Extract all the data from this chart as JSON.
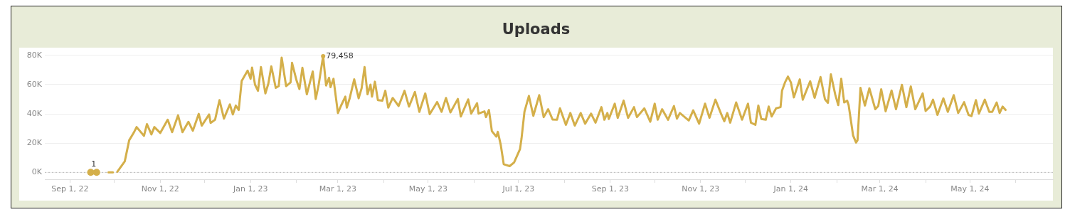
{
  "chart_data": {
    "type": "line",
    "title": "Uploads",
    "x": [
      "2022-09-15",
      "2022-09-17",
      "2022-09-19",
      "2022-09-23",
      "2022-09-27",
      "2022-09-30",
      "2022-10-01",
      "2022-10-03",
      "2022-10-08",
      "2022-10-11",
      "2022-10-14",
      "2022-10-16",
      "2022-10-21",
      "2022-10-23",
      "2022-10-26",
      "2022-10-28",
      "2022-11-01",
      "2022-11-06",
      "2022-11-09",
      "2022-11-13",
      "2022-11-16",
      "2022-11-20",
      "2022-11-23",
      "2022-11-27",
      "2022-11-29",
      "2022-12-04",
      "2022-12-05",
      "2022-12-08",
      "2022-12-11",
      "2022-12-14",
      "2022-12-18",
      "2022-12-20",
      "2022-12-22",
      "2022-12-24",
      "2022-12-26",
      "2022-12-30",
      "2023-01-01",
      "2023-01-02",
      "2023-01-04",
      "2023-01-06",
      "2023-01-08",
      "2023-01-11",
      "2023-01-13",
      "2023-01-15",
      "2023-01-18",
      "2023-01-20",
      "2023-01-22",
      "2023-01-25",
      "2023-01-28",
      "2023-01-29",
      "2023-02-01",
      "2023-02-03",
      "2023-02-05",
      "2023-02-08",
      "2023-02-12",
      "2023-02-14",
      "2023-02-16",
      "2023-02-19",
      "2023-02-21",
      "2023-02-23",
      "2023-02-24",
      "2023-02-26",
      "2023-03-01",
      "2023-03-03",
      "2023-03-06",
      "2023-03-07",
      "2023-03-09",
      "2023-03-12",
      "2023-03-15",
      "2023-03-17",
      "2023-03-19",
      "2023-03-21",
      "2023-03-23",
      "2023-03-24",
      "2023-03-26",
      "2023-03-28",
      "2023-03-31",
      "2023-04-02",
      "2023-04-04",
      "2023-04-07",
      "2023-04-11",
      "2023-04-15",
      "2023-04-18",
      "2023-04-22",
      "2023-04-25",
      "2023-04-29",
      "2023-05-02",
      "2023-05-07",
      "2023-05-10",
      "2023-05-13",
      "2023-05-16",
      "2023-05-21",
      "2023-05-23",
      "2023-05-28",
      "2023-05-30",
      "2023-06-03",
      "2023-06-04",
      "2023-06-08",
      "2023-06-09",
      "2023-06-11",
      "2023-06-13",
      "2023-06-16",
      "2023-06-17",
      "2023-06-19",
      "2023-06-21",
      "2023-06-25",
      "2023-06-28",
      "2023-07-02",
      "2023-07-03",
      "2023-07-05",
      "2023-07-08",
      "2023-07-11",
      "2023-07-15",
      "2023-07-18",
      "2023-07-21",
      "2023-07-24",
      "2023-07-27",
      "2023-07-29",
      "2023-08-02",
      "2023-08-05",
      "2023-08-08",
      "2023-08-12",
      "2023-08-15",
      "2023-08-19",
      "2023-08-22",
      "2023-08-26",
      "2023-08-28",
      "2023-08-30",
      "2023-08-31",
      "2023-09-04",
      "2023-09-06",
      "2023-09-10",
      "2023-09-13",
      "2023-09-17",
      "2023-09-19",
      "2023-09-24",
      "2023-09-28",
      "2023-10-01",
      "2023-10-03",
      "2023-10-06",
      "2023-10-10",
      "2023-10-14",
      "2023-10-16",
      "2023-10-18",
      "2023-10-24",
      "2023-10-27",
      "2023-10-31",
      "2023-11-04",
      "2023-11-07",
      "2023-11-11",
      "2023-11-15",
      "2023-11-17",
      "2023-11-19",
      "2023-11-21",
      "2023-11-25",
      "2023-11-29",
      "2023-12-03",
      "2023-12-05",
      "2023-12-08",
      "2023-12-10",
      "2023-12-12",
      "2023-12-15",
      "2023-12-17",
      "2023-12-19",
      "2023-12-22",
      "2023-12-25",
      "2023-12-26",
      "2023-12-28",
      "2023-12-30",
      "2024-01-01",
      "2024-01-03",
      "2024-01-07",
      "2024-01-09",
      "2024-01-14",
      "2024-01-17",
      "2024-01-21",
      "2024-01-24",
      "2024-01-26",
      "2024-01-28",
      "2024-01-31",
      "2024-02-02",
      "2024-02-04",
      "2024-02-06",
      "2024-02-08",
      "2024-02-09",
      "2024-02-12",
      "2024-02-14",
      "2024-02-15",
      "2024-02-17",
      "2024-02-20",
      "2024-02-23",
      "2024-02-27",
      "2024-02-29",
      "2024-03-02",
      "2024-03-05",
      "2024-03-09",
      "2024-03-12",
      "2024-03-16",
      "2024-03-19",
      "2024-03-22",
      "2024-03-25",
      "2024-03-30",
      "2024-04-01",
      "2024-04-04",
      "2024-04-06",
      "2024-04-09",
      "2024-04-13",
      "2024-04-16",
      "2024-04-20",
      "2024-04-23",
      "2024-04-27",
      "2024-04-30",
      "2024-05-02",
      "2024-05-05",
      "2024-05-07",
      "2024-05-11",
      "2024-05-14",
      "2024-05-16",
      "2024-05-19",
      "2024-05-21",
      "2024-05-23",
      "2024-05-25"
    ],
    "series": [
      {
        "color": "#d4af4a",
        "values": [
          1,
          null,
          1,
          null,
          10,
          10,
          null,
          500,
          7500,
          22000,
          27000,
          31000,
          25000,
          33000,
          26000,
          31000,
          27000,
          36000,
          27500,
          39000,
          27500,
          34600,
          28500,
          40000,
          32000,
          39600,
          33800,
          36000,
          49400,
          36800,
          46500,
          39600,
          45700,
          42700,
          62600,
          69600,
          64000,
          71700,
          60000,
          55800,
          72000,
          54000,
          60700,
          72500,
          57800,
          59000,
          78500,
          59000,
          61500,
          74900,
          63000,
          57000,
          71500,
          53400,
          69000,
          50200,
          60000,
          79458,
          59400,
          64700,
          58300,
          64000,
          40600,
          45400,
          51800,
          44300,
          50900,
          63600,
          50700,
          57500,
          72000,
          53400,
          60000,
          51800,
          62000,
          49400,
          49000,
          55800,
          44300,
          50900,
          45400,
          55800,
          45000,
          55000,
          41400,
          54000,
          39800,
          48100,
          41400,
          50900,
          41000,
          50200,
          38200,
          49900,
          40200,
          47300,
          40200,
          41700,
          37800,
          42700,
          28200,
          24500,
          27700,
          18800,
          5600,
          4300,
          6800,
          15900,
          23000,
          41400,
          52300,
          38700,
          52800,
          37800,
          43200,
          36200,
          36000,
          43800,
          32500,
          40600,
          32000,
          40600,
          33300,
          40200,
          34000,
          44600,
          36000,
          40600,
          36500,
          47000,
          37300,
          49100,
          37300,
          44600,
          37800,
          43800,
          34600,
          47000,
          36000,
          43200,
          36000,
          45400,
          36800,
          40600,
          35500,
          42400,
          33300,
          47000,
          37300,
          49700,
          39600,
          35000,
          40600,
          34000,
          47800,
          36000,
          47000,
          34000,
          32500,
          45700,
          36500,
          36000,
          45000,
          38200,
          43800,
          44600,
          55800,
          61500,
          65500,
          61500,
          51300,
          63600,
          49700,
          62300,
          51000,
          65200,
          50000,
          47500,
          67000,
          53000,
          46000,
          64000,
          47800,
          49000,
          46000,
          25300,
          20400,
          22000,
          57800,
          45700,
          57500,
          43200,
          45400,
          56800,
          41800,
          56000,
          43200,
          59900,
          44600,
          58800,
          43200,
          54000,
          42000,
          45000,
          49700,
          39300,
          50600,
          41400,
          52800,
          40600,
          48000,
          39300,
          38500,
          49400,
          40200,
          49700,
          41400,
          41400,
          47800,
          40600,
          45000,
          42700
        ]
      }
    ],
    "xlim": [
      "2022-08-15",
      "2024-06-26"
    ],
    "xticks": [
      {
        "value": "2022-09-01",
        "label": "Sep 1, 22"
      },
      {
        "value": "2022-10-01",
        "label": null
      },
      {
        "value": "2022-11-01",
        "label": "Nov 1, 22"
      },
      {
        "value": "2022-12-01",
        "label": null
      },
      {
        "value": "2023-01-01",
        "label": "Jan 1, 23"
      },
      {
        "value": "2023-02-01",
        "label": null
      },
      {
        "value": "2023-03-01",
        "label": "Mar 1, 23"
      },
      {
        "value": "2023-04-01",
        "label": null
      },
      {
        "value": "2023-05-01",
        "label": "May 1, 23"
      },
      {
        "value": "2023-06-01",
        "label": null
      },
      {
        "value": "2023-07-01",
        "label": "Jul 1, 23"
      },
      {
        "value": "2023-08-01",
        "label": null
      },
      {
        "value": "2023-09-01",
        "label": "Sep 1, 23"
      },
      {
        "value": "2023-10-01",
        "label": null
      },
      {
        "value": "2023-11-01",
        "label": "Nov 1, 23"
      },
      {
        "value": "2023-12-01",
        "label": null
      },
      {
        "value": "2024-01-01",
        "label": "Jan 1, 24"
      },
      {
        "value": "2024-02-01",
        "label": null
      },
      {
        "value": "2024-03-01",
        "label": "Mar 1, 24"
      },
      {
        "value": "2024-04-01",
        "label": null
      },
      {
        "value": "2024-05-01",
        "label": "May 1, 24"
      },
      {
        "value": "2024-06-01",
        "label": null
      }
    ],
    "ylim": [
      -4700,
      84700
    ],
    "yticks": [
      {
        "value": 0,
        "label": "0K"
      },
      {
        "value": 20000,
        "label": "20K"
      },
      {
        "value": 40000,
        "label": "40K"
      },
      {
        "value": 60000,
        "label": "60K"
      },
      {
        "value": 80000,
        "label": "80K"
      }
    ],
    "grid": "y",
    "ref_lines": [
      {
        "axis": "y",
        "value": 0,
        "label": null,
        "color": "#bbbbbb",
        "line_style": "dotted"
      }
    ],
    "annotations": [
      {
        "text": "1",
        "x": "2022-09-17",
        "y": 1
      },
      {
        "text": "79,458",
        "x": "2023-02-19",
        "y": 79458
      }
    ]
  }
}
